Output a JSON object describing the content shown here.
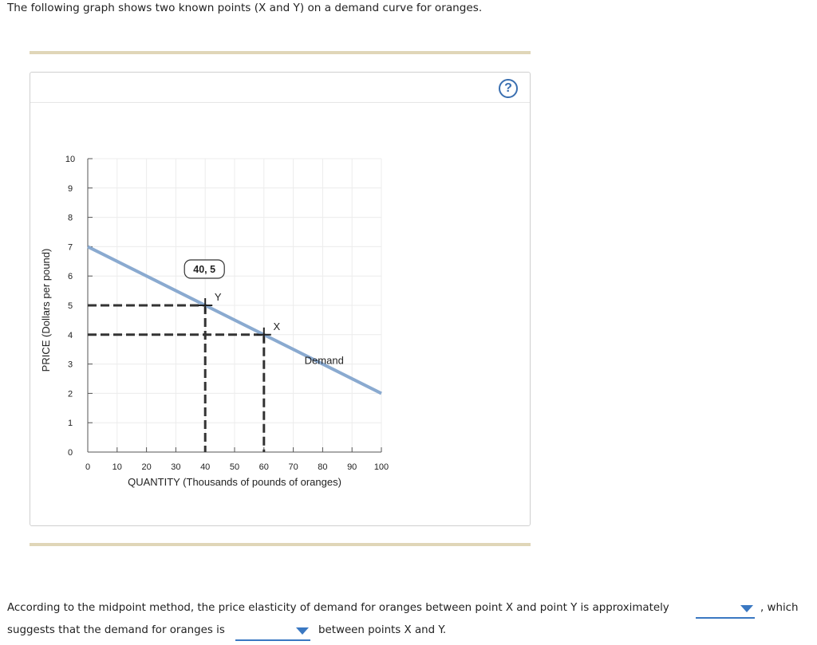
{
  "intro_text": "The following graph shows two known points (X and Y) on a demand curve for oranges.",
  "help_label": "?",
  "chart_data": {
    "type": "line",
    "xlabel": "QUANTITY (Thousands of pounds of oranges)",
    "ylabel": "PRICE (Dollars per pound)",
    "xlim": [
      0,
      100
    ],
    "ylim": [
      0,
      10
    ],
    "x_ticks": [
      "0",
      "10",
      "20",
      "30",
      "40",
      "50",
      "60",
      "70",
      "80",
      "90",
      "100"
    ],
    "y_ticks": [
      "0",
      "1",
      "2",
      "3",
      "4",
      "5",
      "6",
      "7",
      "8",
      "9",
      "10"
    ],
    "grid": true,
    "series": [
      {
        "name": "Demand",
        "x": [
          0,
          100
        ],
        "y": [
          7,
          2
        ],
        "color": "#8aaad0"
      }
    ],
    "points": [
      {
        "label": "Y",
        "x": 40,
        "y": 5
      },
      {
        "label": "X",
        "x": 60,
        "y": 4
      }
    ],
    "tooltip": "40, 5"
  },
  "question": {
    "part1": "According to the midpoint method, the price elasticity of demand for oranges between point X and point Y is approximately",
    "part2": ", which",
    "part3": "suggests that the demand for oranges is",
    "part4": "between points X and Y."
  }
}
